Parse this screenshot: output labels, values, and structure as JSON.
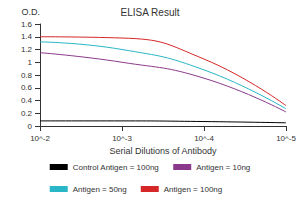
{
  "chart_data": {
    "type": "line",
    "title": "ELISA Result",
    "x_label": "Serial Dilutions of Antibody",
    "y_label": "O.D.",
    "x": [
      0.01,
      0.001,
      0.0001,
      1e-05
    ],
    "series": [
      {
        "name": "Control Antigen = 100ng",
        "color": "#000000",
        "values": [
          0.08,
          0.08,
          0.07,
          0.05
        ]
      },
      {
        "name": "Antigen = 10ng",
        "color": "#8b3a8b",
        "values": [
          1.15,
          1.0,
          0.75,
          0.22
        ]
      },
      {
        "name": "Antigen = 50ng",
        "color": "#29b6c6",
        "values": [
          1.32,
          1.2,
          0.88,
          0.27
        ]
      },
      {
        "name": "Antigen = 100ng",
        "color": "#d62728",
        "values": [
          1.4,
          1.38,
          1.05,
          0.32
        ]
      }
    ],
    "log": "x",
    "xlim": [
      0.01,
      1e-05
    ],
    "xticks": [
      {
        "value": 0.01,
        "label": "10^-2"
      },
      {
        "value": 0.001,
        "label": "10^-3"
      },
      {
        "value": 0.0001,
        "label": "10^-4"
      },
      {
        "value": 1e-05,
        "label": "10^-5"
      }
    ],
    "ylim": [
      0,
      1.6
    ],
    "yticks": [
      0,
      0.2,
      0.4,
      0.6,
      0.8,
      1,
      1.2,
      1.4,
      1.6
    ],
    "grid": false,
    "legend": "bottom"
  }
}
